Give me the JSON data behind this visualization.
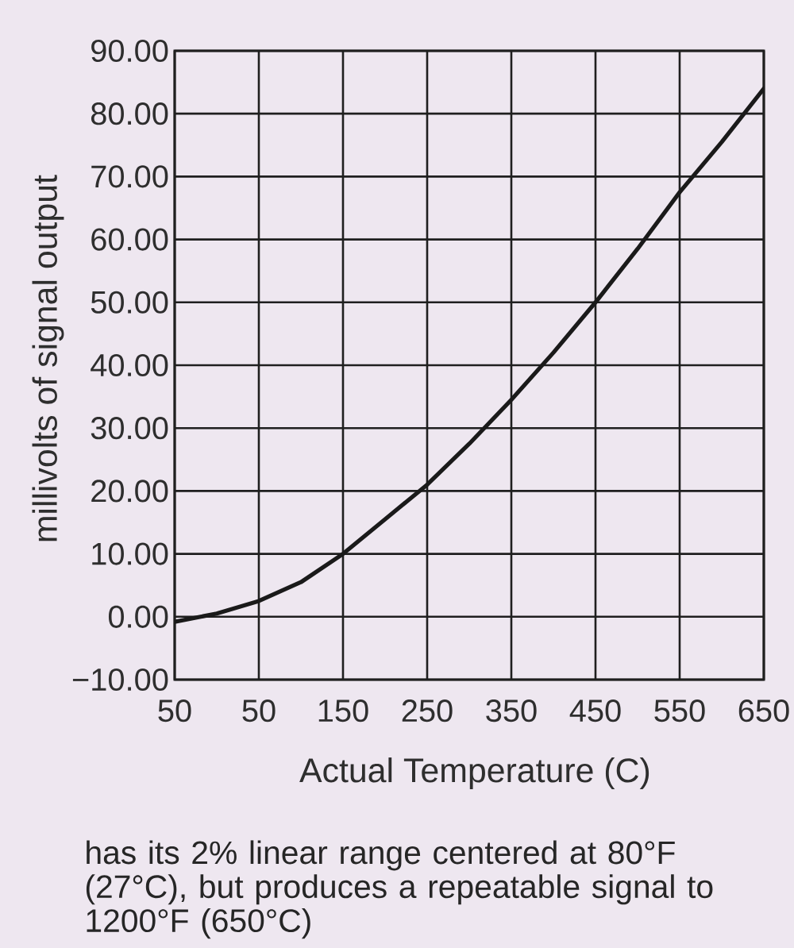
{
  "chart_data": {
    "type": "line",
    "xlabel": "Actual Temperature (C)",
    "ylabel": "millivolts of signal output",
    "x": [
      -50,
      0,
      50,
      100,
      150,
      200,
      250,
      300,
      350,
      400,
      450,
      500,
      550,
      600,
      650
    ],
    "values": [
      -0.8,
      0.5,
      2.5,
      5.5,
      10,
      15.5,
      21,
      27.5,
      34.5,
      42,
      50,
      58.5,
      67.5,
      75.5,
      84
    ],
    "color": "#1a1a1a",
    "xlim": [
      -50,
      650
    ],
    "ylim": [
      -10,
      90
    ],
    "xticks": [
      {
        "value": -50,
        "label": "50"
      },
      50,
      150,
      250,
      350,
      450,
      550,
      650
    ],
    "yticks": [
      {
        "value": -10,
        "label": "−10.00"
      },
      {
        "value": 0,
        "label": "0.00"
      },
      {
        "value": 10,
        "label": "10.00"
      },
      {
        "value": 20,
        "label": "20.00"
      },
      {
        "value": 30,
        "label": "30.00"
      },
      {
        "value": 40,
        "label": "40.00"
      },
      {
        "value": 50,
        "label": "50.00"
      },
      {
        "value": 60,
        "label": "60.00"
      },
      {
        "value": 70,
        "label": "70.00"
      },
      {
        "value": 80,
        "label": "80.00"
      },
      {
        "value": 90,
        "label": "90.00"
      }
    ],
    "grid": true,
    "annotations": [
      "has its 2% linear range centered at 80°F (27°C), but produces a repeatable signal to 1200°F (650°C)"
    ]
  }
}
